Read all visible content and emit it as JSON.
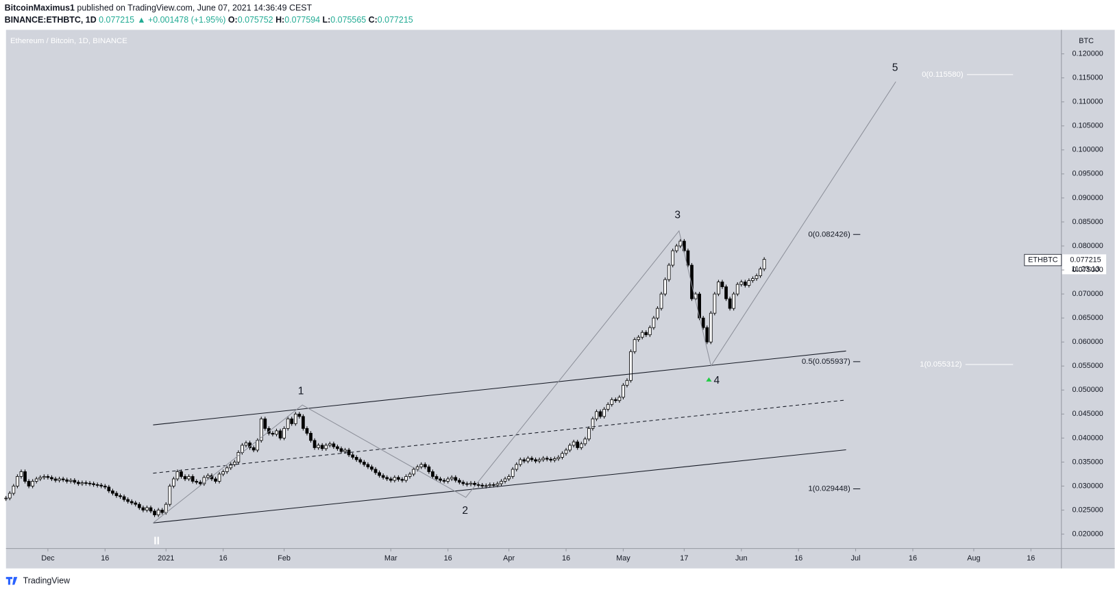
{
  "header": {
    "publisher": "BitcoinMaximus1",
    "published": "published on TradingView.com, June 07, 2021 14:36:49 CEST",
    "symbol": "BINANCE:ETHBTC, 1D",
    "last": "0.077215",
    "change": "+0.001478 (+1.95%)",
    "ohlc": [
      {
        "label": "O:",
        "value": "0.075752"
      },
      {
        "label": "H:",
        "value": "0.077594"
      },
      {
        "label": "L:",
        "value": "0.075565"
      },
      {
        "label": "C:",
        "value": "0.077215"
      }
    ]
  },
  "footer": "TradingView",
  "chart_data": {
    "type": "candlestick",
    "title": "Ethereum / Bitcoin, 1D, BINANCE",
    "y_unit": "BTC",
    "up_color": "#ffffff",
    "down_color": "#000000",
    "close": [
      0.0275,
      0.0285,
      0.03,
      0.032,
      0.033,
      0.031,
      0.03,
      0.031,
      0.0315,
      0.0318,
      0.032,
      0.0318,
      0.0315,
      0.0312,
      0.0315,
      0.0313,
      0.031,
      0.0312,
      0.0308,
      0.0305,
      0.0307,
      0.0306,
      0.0305,
      0.0303,
      0.0302,
      0.03,
      0.0298,
      0.029,
      0.0285,
      0.028,
      0.0278,
      0.0272,
      0.0268,
      0.0265,
      0.0262,
      0.0255,
      0.025,
      0.0255,
      0.0248,
      0.024,
      0.025,
      0.0245,
      0.0262,
      0.03,
      0.0315,
      0.033,
      0.032,
      0.0315,
      0.032,
      0.031,
      0.0308,
      0.0305,
      0.0318,
      0.0322,
      0.0315,
      0.031,
      0.0325,
      0.033,
      0.0338,
      0.0345,
      0.035,
      0.037,
      0.0385,
      0.039,
      0.038,
      0.0375,
      0.0395,
      0.044,
      0.042,
      0.041,
      0.0408,
      0.0415,
      0.04,
      0.042,
      0.044,
      0.043,
      0.045,
      0.0445,
      0.042,
      0.041,
      0.0395,
      0.038,
      0.0385,
      0.0378,
      0.0385,
      0.0388,
      0.0382,
      0.0378,
      0.0372,
      0.0375,
      0.0365,
      0.036,
      0.0355,
      0.035,
      0.0345,
      0.034,
      0.0335,
      0.0328,
      0.0322,
      0.0318,
      0.0315,
      0.0312,
      0.0318,
      0.0314,
      0.0312,
      0.032,
      0.0325,
      0.0335,
      0.034,
      0.0345,
      0.034,
      0.033,
      0.032,
      0.0315,
      0.0312,
      0.031,
      0.0315,
      0.0318,
      0.0312,
      0.0308,
      0.0305,
      0.0304,
      0.0306,
      0.0303,
      0.0302,
      0.03,
      0.0301,
      0.0303,
      0.0302,
      0.0305,
      0.031,
      0.0315,
      0.032,
      0.0335,
      0.0345,
      0.0355,
      0.0352,
      0.0358,
      0.0355,
      0.0352,
      0.0355,
      0.0358,
      0.0356,
      0.0354,
      0.0357,
      0.036,
      0.0368,
      0.0375,
      0.0385,
      0.0392,
      0.038,
      0.0388,
      0.0398,
      0.042,
      0.044,
      0.0455,
      0.0445,
      0.046,
      0.047,
      0.048,
      0.0478,
      0.0485,
      0.051,
      0.052,
      0.058,
      0.0605,
      0.061,
      0.062,
      0.0615,
      0.063,
      0.065,
      0.067,
      0.07,
      0.073,
      0.076,
      0.079,
      0.08,
      0.081,
      0.079,
      0.076,
      0.069,
      0.07,
      0.065,
      0.063,
      0.06,
      0.066,
      0.07,
      0.0725,
      0.0715,
      0.069,
      0.067,
      0.07,
      0.072,
      0.0725,
      0.0718,
      0.0728,
      0.0732,
      0.0738,
      0.0752,
      0.077215
    ],
    "xlim": [
      0,
      277
    ],
    "xticks": [
      {
        "value": 11,
        "label": "Dec"
      },
      {
        "value": 26,
        "label": "16"
      },
      {
        "value": 42,
        "label": "2021"
      },
      {
        "value": 57,
        "label": "16"
      },
      {
        "value": 73,
        "label": "Feb"
      },
      {
        "value": 101,
        "label": "Mar"
      },
      {
        "value": 116,
        "label": "16"
      },
      {
        "value": 132,
        "label": "Apr"
      },
      {
        "value": 147,
        "label": "16"
      },
      {
        "value": 162,
        "label": "May"
      },
      {
        "value": 178,
        "label": "17"
      },
      {
        "value": 193,
        "label": "Jun"
      },
      {
        "value": 208,
        "label": "16"
      },
      {
        "value": 223,
        "label": "Jul"
      },
      {
        "value": 238,
        "label": "16"
      },
      {
        "value": 254,
        "label": "Aug"
      },
      {
        "value": 269,
        "label": "16"
      }
    ],
    "ylim": [
      0.017,
      0.125
    ],
    "yticks": [
      {
        "value": 0.02,
        "label": "0.020000"
      },
      {
        "value": 0.025,
        "label": "0.025000"
      },
      {
        "value": 0.03,
        "label": "0.030000"
      },
      {
        "value": 0.035,
        "label": "0.035000"
      },
      {
        "value": 0.04,
        "label": "0.040000"
      },
      {
        "value": 0.045,
        "label": "0.045000"
      },
      {
        "value": 0.05,
        "label": "0.050000"
      },
      {
        "value": 0.055,
        "label": "0.055000"
      },
      {
        "value": 0.06,
        "label": "0.060000"
      },
      {
        "value": 0.065,
        "label": "0.065000"
      },
      {
        "value": 0.07,
        "label": "0.070000"
      },
      {
        "value": 0.075,
        "label": "0.075000"
      },
      {
        "value": 0.08,
        "label": "0.080000"
      },
      {
        "value": 0.085,
        "label": "0.085000"
      },
      {
        "value": 0.09,
        "label": "0.090000"
      },
      {
        "value": 0.095,
        "label": "0.095000"
      },
      {
        "value": 0.1,
        "label": "0.100000"
      },
      {
        "value": 0.105,
        "label": "0.105000"
      },
      {
        "value": 0.11,
        "label": "0.110000"
      },
      {
        "value": 0.115,
        "label": "0.115000"
      },
      {
        "value": 0.12,
        "label": "0.120000"
      }
    ],
    "price_label": {
      "symbol": "ETHBTC",
      "price": "0.077215",
      "countdown": "11:23:13"
    },
    "fib_labels": [
      "0(0.115580)",
      "0(0.082426)",
      "0.5(0.055937)",
      "1(0.055312)",
      "1(0.029448)"
    ],
    "wave_labels": [
      "1",
      "2",
      "3",
      "4",
      "5",
      "II"
    ]
  }
}
